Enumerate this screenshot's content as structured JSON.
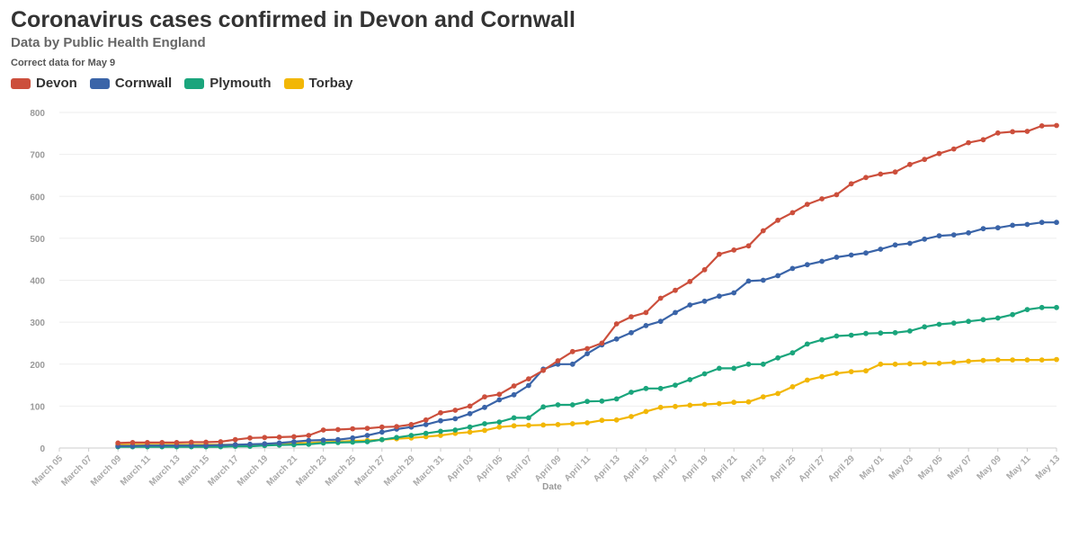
{
  "chart_data": {
    "type": "line",
    "title": "Coronavirus cases confirmed in Devon and Cornwall",
    "subtitle": "Data by Public Health England",
    "note": "Correct data for May 9",
    "xlabel": "Date",
    "ylabel": "",
    "ylim": [
      0,
      800
    ],
    "yticks": [
      0,
      100,
      200,
      300,
      400,
      500,
      600,
      700,
      800
    ],
    "xticks": [
      "March 05",
      "March 07",
      "March 09",
      "March 11",
      "March 13",
      "March 15",
      "March 17",
      "March 19",
      "March 21",
      "March 23",
      "March 25",
      "March 27",
      "March 29",
      "March 31",
      "April 03",
      "April 05",
      "April 07",
      "April 09",
      "April 11",
      "April 13",
      "April 15",
      "April 17",
      "April 19",
      "April 21",
      "April 23",
      "April 25",
      "April 27",
      "April 29",
      "May 01",
      "May 03",
      "May 05",
      "May 07",
      "May 09",
      "May 11",
      "May 13"
    ],
    "grid": true,
    "legend_position": "top-left",
    "x_start": "March 09",
    "series": [
      {
        "name": "Devon",
        "color": "#cc4f3c",
        "values": [
          12,
          13,
          13,
          13,
          13,
          14,
          14,
          15,
          20,
          24,
          25,
          26,
          27,
          30,
          43,
          44,
          46,
          47,
          50,
          51,
          56,
          67,
          84,
          90,
          100,
          122,
          128,
          148,
          165,
          185,
          208,
          230,
          237,
          250,
          296,
          313,
          323,
          357,
          376,
          397,
          425,
          462,
          472,
          482,
          518,
          543,
          561,
          581,
          594,
          604,
          630,
          645,
          653,
          658,
          676,
          688,
          702,
          713,
          728,
          735,
          751,
          754,
          755,
          768,
          769
        ]
      },
      {
        "name": "Cornwall",
        "color": "#3a64a8",
        "values": [
          5,
          5,
          6,
          6,
          6,
          6,
          6,
          7,
          8,
          9,
          10,
          12,
          15,
          18,
          19,
          20,
          24,
          30,
          38,
          45,
          50,
          56,
          65,
          70,
          82,
          97,
          115,
          127,
          149,
          188,
          200,
          200,
          225,
          246,
          260,
          275,
          292,
          302,
          323,
          341,
          350,
          362,
          370,
          398,
          400,
          411,
          428,
          437,
          445,
          455,
          460,
          465,
          474,
          484,
          488,
          498,
          506,
          508,
          513,
          523,
          525,
          531,
          533,
          538,
          538
        ]
      },
      {
        "name": "Plymouth",
        "color": "#1aa57c",
        "values": [
          3,
          3,
          3,
          3,
          3,
          3,
          3,
          3,
          4,
          4,
          6,
          7,
          8,
          9,
          12,
          13,
          14,
          15,
          20,
          25,
          30,
          35,
          40,
          43,
          50,
          58,
          62,
          72,
          72,
          98,
          103,
          103,
          111,
          112,
          117,
          133,
          142,
          142,
          150,
          163,
          177,
          190,
          190,
          200,
          200,
          215,
          227,
          248,
          258,
          267,
          269,
          273,
          274,
          275,
          279,
          289,
          295,
          298,
          302,
          306,
          310,
          318,
          330,
          335,
          335
        ]
      },
      {
        "name": "Torbay",
        "color": "#f2b705",
        "values": [
          8,
          8,
          8,
          8,
          8,
          8,
          8,
          8,
          8,
          8,
          9,
          10,
          11,
          12,
          14,
          15,
          17,
          18,
          20,
          22,
          24,
          27,
          30,
          35,
          38,
          42,
          50,
          53,
          54,
          55,
          56,
          58,
          60,
          66,
          67,
          75,
          87,
          97,
          99,
          102,
          104,
          106,
          109,
          110,
          122,
          130,
          146,
          162,
          170,
          178,
          182,
          184,
          200,
          200,
          201,
          202,
          202,
          204,
          207,
          209,
          210,
          210,
          210,
          210,
          211
        ]
      }
    ]
  }
}
